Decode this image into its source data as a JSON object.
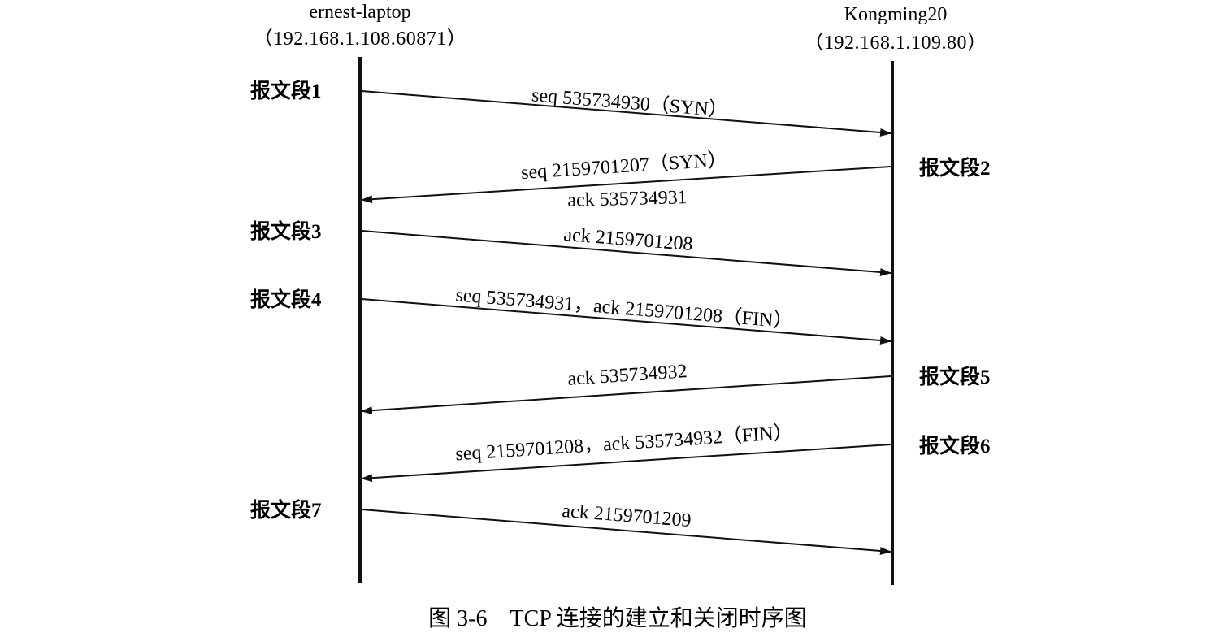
{
  "hosts": {
    "left": {
      "name": "ernest-laptop",
      "address": "（192.168.1.108.60871）"
    },
    "right": {
      "name": "Kongming20",
      "address": "（192.168.1.109.80）"
    }
  },
  "segments": [
    {
      "label": "报文段1",
      "side": "left",
      "lines": [
        "seq 535734930（SYN）"
      ]
    },
    {
      "label": "报文段2",
      "side": "right",
      "lines": [
        "seq 2159701207（SYN）",
        "ack 535734931"
      ]
    },
    {
      "label": "报文段3",
      "side": "left",
      "lines": [
        "ack 2159701208"
      ]
    },
    {
      "label": "报文段4",
      "side": "left",
      "lines": [
        "seq 535734931，ack 2159701208（FIN）"
      ]
    },
    {
      "label": "报文段5",
      "side": "right",
      "lines": [
        "ack 535734932"
      ]
    },
    {
      "label": "报文段6",
      "side": "right",
      "lines": [
        "seq 2159701208，ack 535734932（FIN）"
      ]
    },
    {
      "label": "报文段7",
      "side": "left",
      "lines": [
        "ack 2159701209"
      ]
    }
  ],
  "caption": "图 3-6　TCP 连接的建立和关闭时序图",
  "colors": {
    "ink": "#111111",
    "background": "#ffffff"
  }
}
